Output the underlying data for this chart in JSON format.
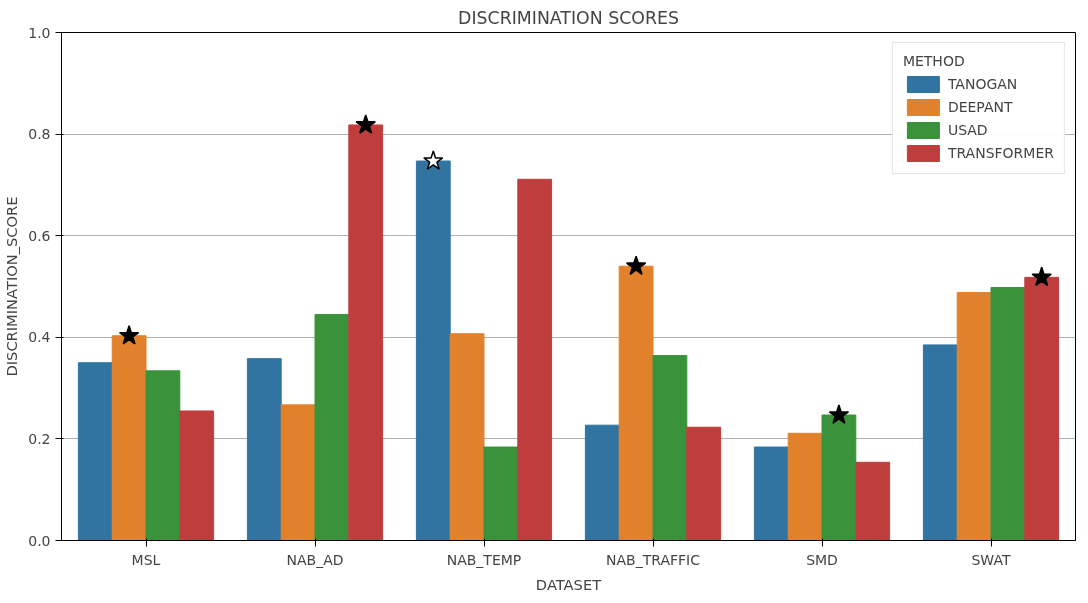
{
  "chart_data": {
    "type": "bar",
    "title": "DISCRIMINATION SCORES",
    "xlabel": "DATASET",
    "ylabel": "DISCRIMINATION_SCORE",
    "legend_title": "METHOD",
    "categories": [
      "MSL",
      "NAB_AD",
      "NAB_TEMP",
      "NAB_TRAFFIC",
      "SMD",
      "SWAT"
    ],
    "series": [
      {
        "name": "TANOGAN",
        "color": "#3274a1",
        "values": [
          0.35,
          0.358,
          0.747,
          0.227,
          0.184,
          0.385
        ]
      },
      {
        "name": "DEEPANT",
        "color": "#e1812c",
        "values": [
          0.403,
          0.267,
          0.407,
          0.54,
          0.211,
          0.488
        ]
      },
      {
        "name": "USAD",
        "color": "#3a923a",
        "values": [
          0.334,
          0.445,
          0.184,
          0.364,
          0.247,
          0.498
        ]
      },
      {
        "name": "TRANSFORMER",
        "color": "#c03d3e",
        "values": [
          0.255,
          0.818,
          0.711,
          0.223,
          0.154,
          0.518
        ]
      },
      {
        "type": "scatter",
        "marker": "star",
        "color": "#000000",
        "x": [
          "MSL",
          "NAB_AD",
          "NAB_TEMP",
          "NAB_TRAFFIC",
          "SMD",
          "SWAT"
        ],
        "values": [
          0.403,
          0.818,
          0.747,
          0.54,
          0.247,
          0.518
        ],
        "colors": [
          "#000000",
          "#000000",
          "#ffffff",
          "#000000",
          "#000000",
          "#000000"
        ]
      }
    ],
    "ylim": [
      0,
      1
    ],
    "yticks": [
      {
        "value": 0,
        "label": "0.0"
      },
      0.2,
      0.4,
      0.6,
      0.8,
      {
        "value": 1,
        "label": "1.0"
      }
    ],
    "grid": "y",
    "legend": "top right"
  }
}
